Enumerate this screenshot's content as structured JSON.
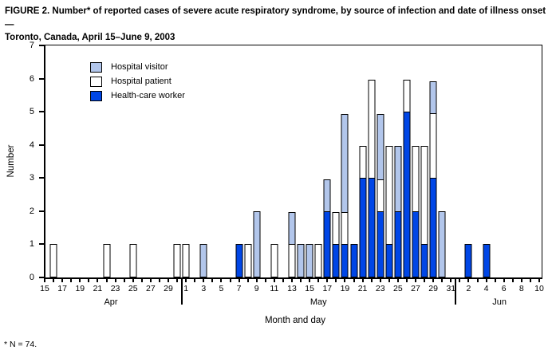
{
  "figure": {
    "title_line1": "FIGURE 2. Number* of reported cases of severe acute respiratory syndrome, by source of infection and date of illness onset —",
    "title_line2": "Toronto, Canada, April 15–June 9, 2003",
    "footnote": "* N = 74."
  },
  "chart_data": {
    "type": "bar",
    "stacked": true,
    "title": "FIGURE 2. Number* of reported cases of severe acute respiratory syndrome, by source of infection and date of illness onset — Toronto, Canada, April 15–June 9, 2003",
    "xlabel": "Month and day",
    "ylabel": "Number",
    "ylim": [
      0,
      7
    ],
    "yticks": [
      0,
      1,
      2,
      3,
      4,
      5,
      6,
      7
    ],
    "grid": false,
    "legend_position": "top-left-inside",
    "legend": [
      {
        "name": "Hospital visitor",
        "color": "#B2C6EB"
      },
      {
        "name": "Hospital patient",
        "color": "#FFFFFF"
      },
      {
        "name": "Health-care worker",
        "color": "#0046E6"
      }
    ],
    "stack_order_bottom_to_top": [
      "Health-care worker",
      "Hospital patient",
      "Hospital visitor"
    ],
    "categories": [
      "Apr 15",
      "Apr 16",
      "Apr 17",
      "Apr 18",
      "Apr 19",
      "Apr 20",
      "Apr 21",
      "Apr 22",
      "Apr 23",
      "Apr 24",
      "Apr 25",
      "Apr 26",
      "Apr 27",
      "Apr 28",
      "Apr 29",
      "Apr 30",
      "May 1",
      "May 2",
      "May 3",
      "May 4",
      "May 5",
      "May 6",
      "May 7",
      "May 8",
      "May 9",
      "May 10",
      "May 11",
      "May 12",
      "May 13",
      "May 14",
      "May 15",
      "May 16",
      "May 17",
      "May 18",
      "May 19",
      "May 20",
      "May 21",
      "May 22",
      "May 23",
      "May 24",
      "May 25",
      "May 26",
      "May 27",
      "May 28",
      "May 29",
      "May 30",
      "May 31",
      "Jun 1",
      "Jun 2",
      "Jun 3",
      "Jun 4",
      "Jun 5",
      "Jun 6",
      "Jun 7",
      "Jun 8",
      "Jun 9",
      "Jun 10"
    ],
    "tick_labels": [
      "15",
      "",
      "17",
      "",
      "19",
      "",
      "21",
      "",
      "23",
      "",
      "25",
      "",
      "27",
      "",
      "29",
      "",
      "1",
      "",
      "3",
      "",
      "5",
      "",
      "7",
      "",
      "9",
      "",
      "11",
      "",
      "13",
      "",
      "15",
      "",
      "17",
      "",
      "19",
      "",
      "21",
      "",
      "23",
      "",
      "25",
      "",
      "27",
      "",
      "29",
      "",
      "31",
      "",
      "2",
      "",
      "4",
      "",
      "6",
      "",
      "8",
      "",
      "10"
    ],
    "months": [
      {
        "name": "Apr",
        "start": 0,
        "end": 15
      },
      {
        "name": "May",
        "start": 16,
        "end": 46
      },
      {
        "name": "Jun",
        "start": 47,
        "end": 56
      }
    ],
    "series": [
      {
        "name": "Health-care worker",
        "color": "#0046E6",
        "values": [
          0,
          0,
          0,
          0,
          0,
          0,
          0,
          0,
          0,
          0,
          0,
          0,
          0,
          0,
          0,
          0,
          0,
          0,
          0,
          0,
          0,
          0,
          1,
          0,
          0,
          0,
          0,
          0,
          0,
          0,
          0,
          0,
          2,
          1,
          1,
          1,
          3,
          3,
          2,
          1,
          2,
          5,
          2,
          1,
          3,
          0,
          0,
          0,
          1,
          0,
          1,
          0,
          0,
          0,
          0,
          0,
          0
        ]
      },
      {
        "name": "Hospital patient",
        "color": "#FFFFFF",
        "values": [
          0,
          1,
          0,
          0,
          0,
          0,
          0,
          1,
          0,
          0,
          1,
          0,
          0,
          0,
          0,
          1,
          1,
          0,
          0,
          0,
          0,
          0,
          0,
          1,
          0,
          0,
          1,
          0,
          1,
          0,
          0,
          1,
          0,
          1,
          1,
          0,
          1,
          3,
          1,
          3,
          0,
          1,
          2,
          3,
          2,
          0,
          0,
          0,
          0,
          0,
          0,
          0,
          0,
          0,
          0,
          0,
          0
        ]
      },
      {
        "name": "Hospital visitor",
        "color": "#B2C6EB",
        "values": [
          0,
          0,
          0,
          0,
          0,
          0,
          0,
          0,
          0,
          0,
          0,
          0,
          0,
          0,
          0,
          0,
          0,
          0,
          1,
          0,
          0,
          0,
          0,
          0,
          2,
          0,
          0,
          0,
          1,
          1,
          1,
          0,
          1,
          0,
          3,
          0,
          0,
          0,
          2,
          0,
          2,
          0,
          0,
          0,
          1,
          2,
          0,
          0,
          0,
          0,
          0,
          0,
          0,
          0,
          0,
          0,
          0
        ]
      }
    ],
    "total_n": 74
  }
}
